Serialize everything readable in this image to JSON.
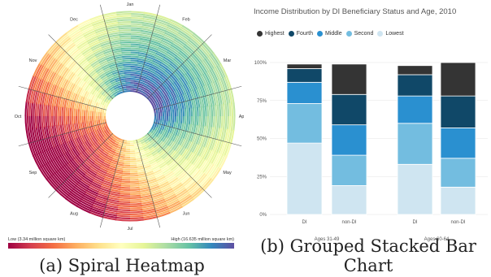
{
  "captions": {
    "left": "(a) Spiral Heatmap",
    "right": "(b) Grouped Stacked Bar Chart"
  },
  "chart_data": [
    {
      "type": "heatmap",
      "subtype": "spiral",
      "months": [
        "Jan",
        "Feb",
        "Mar",
        "Apr",
        "May",
        "Jun",
        "Jul",
        "Aug",
        "Sep",
        "Oct",
        "Nov",
        "Dec"
      ],
      "rings": 40,
      "legend": {
        "low_label": "Low (3.34 million square km)",
        "high_label": "High (16.635 million square km)",
        "low_value": 3.34,
        "high_value": 16.635,
        "colormap": [
          "#9e0142",
          "#d53e4f",
          "#f46d43",
          "#fdae61",
          "#fee08b",
          "#ffffbf",
          "#e6f598",
          "#abdda4",
          "#66c2a5",
          "#3288bd",
          "#5e4fa2"
        ]
      },
      "monthly_level": [
        0.86,
        0.88,
        0.9,
        0.85,
        0.72,
        0.55,
        0.35,
        0.15,
        0.08,
        0.22,
        0.48,
        0.72
      ],
      "trend": 0.35
    },
    {
      "type": "bar",
      "subtype": "grouped-stacked",
      "title": "Income Distribution by DI Beneficiary Status and Age, 2010",
      "y_ticks": [
        "0%",
        "25%",
        "50%",
        "75%",
        "100%"
      ],
      "ylim": [
        0,
        100
      ],
      "series": [
        {
          "name": "Lowest",
          "color": "#cfe5f1",
          "values": [
            47,
            19,
            33,
            18
          ]
        },
        {
          "name": "Second",
          "color": "#73bde0",
          "values": [
            26,
            20,
            27,
            19
          ]
        },
        {
          "name": "Middle",
          "color": "#2a90d0",
          "values": [
            14,
            20,
            18,
            20
          ]
        },
        {
          "name": "Fourth",
          "color": "#104868",
          "values": [
            9,
            20,
            14,
            21
          ]
        },
        {
          "name": "Highest",
          "color": "#343434",
          "values": [
            3,
            20,
            6,
            22
          ]
        }
      ],
      "legend_order": [
        "Highest",
        "Fourth",
        "Middle",
        "Second",
        "Lowest"
      ],
      "categories": [
        "DI",
        "non-DI",
        "DI",
        "non-DI"
      ],
      "groups": [
        {
          "label": "Ages 31-49",
          "members": [
            0,
            1
          ]
        },
        {
          "label": "Ages 60-64",
          "members": [
            2,
            3
          ]
        }
      ]
    }
  ]
}
